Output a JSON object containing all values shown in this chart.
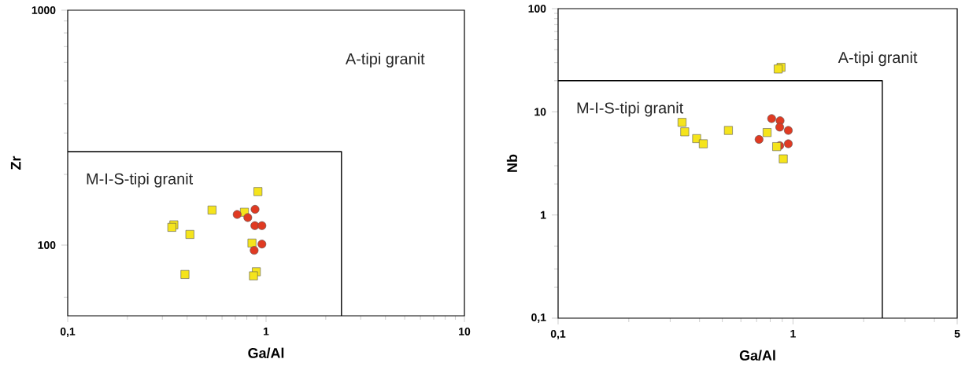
{
  "chart_data": [
    {
      "type": "scatter",
      "xlabel": "Ga/Al",
      "ylabel": "Zr",
      "log": "xy",
      "xlim": [
        0.1,
        10
      ],
      "ylim": [
        50,
        1000
      ],
      "xticks": [
        {
          "value": 0.1,
          "label": "0,1"
        },
        1,
        10,
        {
          "value": 0.2,
          "label": null
        },
        {
          "value": 0.3,
          "label": null
        },
        {
          "value": 0.4,
          "label": null
        },
        {
          "value": 0.5,
          "label": null
        },
        {
          "value": 0.6,
          "label": null
        },
        {
          "value": 0.7,
          "label": null
        },
        {
          "value": 0.8,
          "label": null
        },
        {
          "value": 0.9,
          "label": null
        },
        {
          "value": 2,
          "label": null
        },
        {
          "value": 3,
          "label": null
        },
        {
          "value": 4,
          "label": null
        },
        {
          "value": 5,
          "label": null
        },
        {
          "value": 6,
          "label": null
        },
        {
          "value": 7,
          "label": null
        },
        {
          "value": 8,
          "label": null
        },
        {
          "value": 9,
          "label": null
        }
      ],
      "yticks": [
        100,
        1000,
        {
          "value": 60,
          "label": null
        },
        {
          "value": 200,
          "label": null
        },
        {
          "value": 300,
          "label": null
        },
        {
          "value": 400,
          "label": null
        },
        {
          "value": 500,
          "label": null
        },
        {
          "value": 600,
          "label": null
        },
        {
          "value": 700,
          "label": null
        },
        {
          "value": 800,
          "label": null
        },
        {
          "value": 900,
          "label": null
        }
      ],
      "series": [
        {
          "type": "line",
          "color": "#000000",
          "marker": "none",
          "x": [
            0.1,
            2.4,
            2.4
          ],
          "values": [
            250,
            250,
            50
          ]
        },
        {
          "color": "#f5e41c",
          "marker": "square",
          "x": [
            0.91,
            0.534,
            0.778,
            0.343,
            0.335,
            0.413,
            0.849,
            0.39,
            0.893,
            0.864
          ],
          "values": [
            169,
            141,
            138,
            122,
            119,
            111,
            102,
            75,
            77,
            74
          ]
        },
        {
          "color": "#e03a22",
          "marker": "circle",
          "x": [
            0.715,
            0.809,
            0.88,
            0.878,
            0.953,
            0.953,
            0.871
          ],
          "values": [
            135,
            131,
            142,
            121,
            121,
            101,
            95
          ]
        }
      ],
      "annotations": [
        "A-tipi granit",
        "M-I-S-tipi granit"
      ]
    },
    {
      "type": "scatter",
      "xlabel": "Ga/Al",
      "ylabel": "Nb",
      "log": "xy",
      "xlim": [
        0.1,
        5
      ],
      "ylim": [
        0.1,
        100
      ],
      "xticks": [
        {
          "value": 0.1,
          "label": "0,1"
        },
        1,
        5,
        {
          "value": 0.2,
          "label": null
        },
        {
          "value": 0.3,
          "label": null
        },
        {
          "value": 0.4,
          "label": null
        },
        {
          "value": 0.5,
          "label": null
        },
        {
          "value": 0.6,
          "label": null
        },
        {
          "value": 0.7,
          "label": null
        },
        {
          "value": 0.8,
          "label": null
        },
        {
          "value": 0.9,
          "label": null
        },
        {
          "value": 2,
          "label": null
        },
        {
          "value": 3,
          "label": null
        },
        {
          "value": 4,
          "label": null
        }
      ],
      "yticks": [
        {
          "value": 0.1,
          "label": "0,1"
        },
        1,
        10,
        100,
        {
          "value": 0.2,
          "label": null
        },
        {
          "value": 0.3,
          "label": null
        },
        {
          "value": 0.5,
          "label": null
        },
        {
          "value": 2,
          "label": null
        },
        {
          "value": 3,
          "label": null
        },
        {
          "value": 5,
          "label": null
        },
        {
          "value": 20,
          "label": null
        },
        {
          "value": 30,
          "label": null
        },
        {
          "value": 40,
          "label": null
        },
        {
          "value": 50,
          "label": null
        },
        {
          "value": 60,
          "label": null
        },
        {
          "value": 70,
          "label": null
        },
        {
          "value": 80,
          "label": null
        },
        {
          "value": 90,
          "label": null
        }
      ],
      "series": [
        {
          "type": "line",
          "color": "#000000",
          "marker": "none",
          "x": [
            0.1,
            2.4,
            2.4
          ],
          "values": [
            20,
            20,
            0.1
          ]
        },
        {
          "color": "#e03a22",
          "marker": "circle",
          "x": [
            0.811,
            0.881,
            0.878,
            0.955,
            0.717,
            0.878,
            0.955
          ],
          "values": [
            8.6,
            8.2,
            7.1,
            6.6,
            5.4,
            4.7,
            4.9
          ]
        },
        {
          "color": "#f5e41c",
          "marker": "square",
          "x": [
            0.889,
            0.865,
            0.337,
            0.346,
            0.389,
            0.415,
            0.531,
            0.776,
            0.852,
            0.909
          ],
          "values": [
            27,
            26,
            7.9,
            6.4,
            5.5,
            4.9,
            6.6,
            6.3,
            4.6,
            3.5
          ]
        }
      ],
      "annotations": [
        "A-tipi granit",
        "M-I-S-tipi granit"
      ]
    }
  ]
}
